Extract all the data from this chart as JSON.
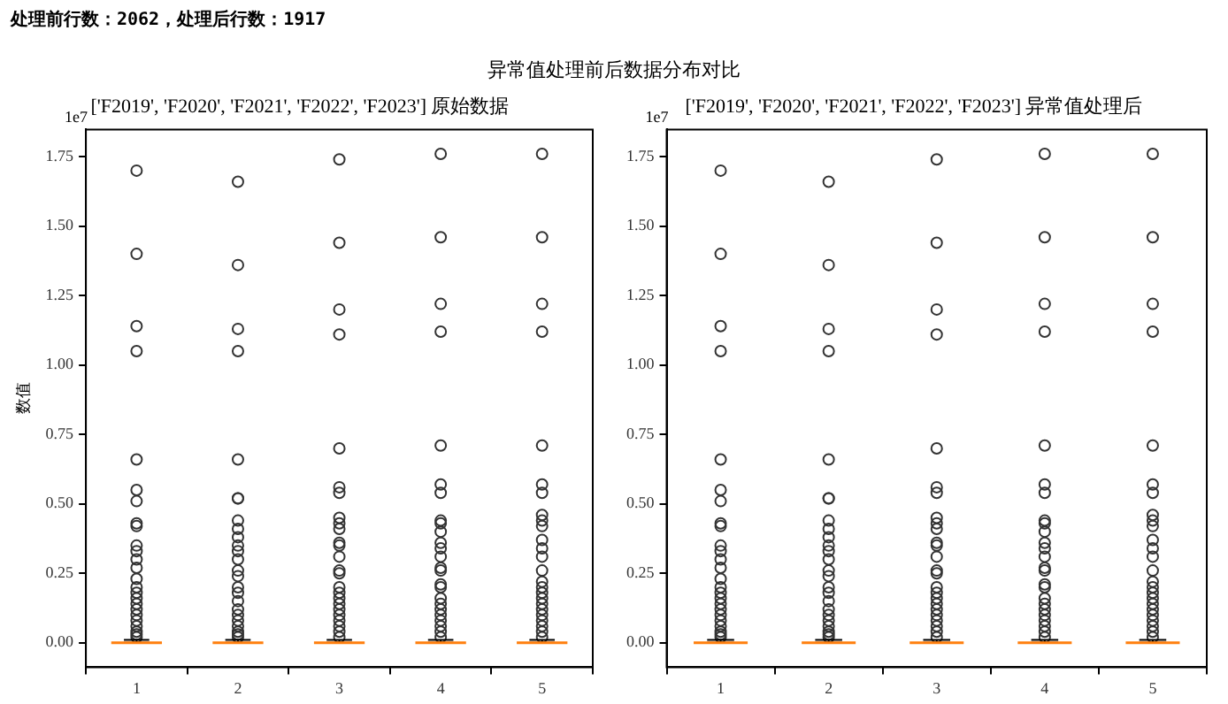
{
  "chart_data": [
    {
      "type": "box",
      "title": "['F2019', 'F2020', 'F2021', 'F2022', 'F2023'] 原始数据",
      "ylabel": "数值",
      "categories": [
        "1",
        "2",
        "3",
        "4",
        "5"
      ],
      "marker": "circle",
      "annotations": [
        "1e7",
        "处理前行数：2062，处理后行数：1917",
        "异常值处理前后数据分布对比"
      ],
      "ylim": [
        -0.088,
        1.848
      ],
      "yticks": [
        {
          "value": 0,
          "label": "0.00"
        },
        {
          "value": 0.25,
          "label": "0.25"
        },
        {
          "value": 0.5,
          "label": "0.50"
        },
        {
          "value": 0.75,
          "label": "0.75"
        },
        {
          "value": 1,
          "label": "1.00"
        },
        {
          "value": 1.25,
          "label": "1.25"
        },
        {
          "value": 1.5,
          "label": "1.50"
        },
        {
          "value": 1.75,
          "label": "1.75"
        }
      ],
      "boxes": [
        {
          "low": 0,
          "q1": 0,
          "median": 0,
          "q3": 0,
          "high": 0.01,
          "outliers": [
            1.7,
            1.4,
            1.14,
            1.05,
            0.66,
            0.55,
            0.51,
            0.43,
            0.42,
            0.35,
            0.33,
            0.3,
            0.27,
            0.23,
            0.2,
            0.18,
            0.16,
            0.14,
            0.12,
            0.1,
            0.08,
            0.06,
            0.04,
            0.03,
            0.02
          ]
        },
        {
          "low": 0,
          "q1": 0,
          "median": 0,
          "q3": 0,
          "high": 0.01,
          "outliers": [
            1.66,
            1.36,
            1.13,
            1.05,
            0.66,
            0.52,
            0.52,
            0.44,
            0.41,
            0.38,
            0.35,
            0.33,
            0.3,
            0.26,
            0.24,
            0.2,
            0.18,
            0.15,
            0.12,
            0.1,
            0.08,
            0.06,
            0.04,
            0.03,
            0.02
          ]
        },
        {
          "low": 0,
          "q1": 0,
          "median": 0,
          "q3": 0,
          "high": 0.01,
          "outliers": [
            1.74,
            1.44,
            1.2,
            1.11,
            0.7,
            0.56,
            0.54,
            0.45,
            0.43,
            0.41,
            0.36,
            0.35,
            0.31,
            0.26,
            0.25,
            0.2,
            0.18,
            0.16,
            0.14,
            0.12,
            0.1,
            0.08,
            0.06,
            0.04,
            0.02
          ]
        },
        {
          "low": 0,
          "q1": 0,
          "median": 0,
          "q3": 0,
          "high": 0.01,
          "outliers": [
            1.76,
            1.46,
            1.22,
            1.12,
            0.71,
            0.57,
            0.54,
            0.44,
            0.43,
            0.4,
            0.36,
            0.34,
            0.31,
            0.27,
            0.26,
            0.21,
            0.2,
            0.16,
            0.14,
            0.12,
            0.1,
            0.08,
            0.06,
            0.04,
            0.02
          ]
        },
        {
          "low": 0,
          "q1": 0,
          "median": 0,
          "q3": 0,
          "high": 0.01,
          "outliers": [
            1.76,
            1.46,
            1.22,
            1.12,
            0.71,
            0.57,
            0.54,
            0.46,
            0.44,
            0.42,
            0.37,
            0.34,
            0.31,
            0.26,
            0.22,
            0.2,
            0.18,
            0.16,
            0.14,
            0.12,
            0.1,
            0.08,
            0.06,
            0.04,
            0.02
          ]
        }
      ]
    },
    {
      "type": "box",
      "title": "['F2019', 'F2020', 'F2021', 'F2022', 'F2023'] 异常值处理后",
      "categories": [
        "1",
        "2",
        "3",
        "4",
        "5"
      ],
      "marker": "circle",
      "annotations": [
        "1e7"
      ],
      "ylim": [
        -0.088,
        1.848
      ],
      "yticks": [
        {
          "value": 0,
          "label": "0.00"
        },
        {
          "value": 0.25,
          "label": "0.25"
        },
        {
          "value": 0.5,
          "label": "0.50"
        },
        {
          "value": 0.75,
          "label": "0.75"
        },
        {
          "value": 1,
          "label": "1.00"
        },
        {
          "value": 1.25,
          "label": "1.25"
        },
        {
          "value": 1.5,
          "label": "1.50"
        },
        {
          "value": 1.75,
          "label": "1.75"
        }
      ],
      "boxes": [
        {
          "low": 0,
          "q1": 0,
          "median": 0,
          "q3": 0,
          "high": 0.01,
          "outliers": [
            1.7,
            1.4,
            1.14,
            1.05,
            0.66,
            0.55,
            0.51,
            0.43,
            0.42,
            0.35,
            0.33,
            0.3,
            0.27,
            0.23,
            0.2,
            0.18,
            0.16,
            0.14,
            0.12,
            0.1,
            0.08,
            0.06,
            0.04,
            0.03,
            0.02
          ]
        },
        {
          "low": 0,
          "q1": 0,
          "median": 0,
          "q3": 0,
          "high": 0.01,
          "outliers": [
            1.66,
            1.36,
            1.13,
            1.05,
            0.66,
            0.52,
            0.52,
            0.44,
            0.41,
            0.38,
            0.35,
            0.33,
            0.3,
            0.26,
            0.24,
            0.2,
            0.18,
            0.15,
            0.12,
            0.1,
            0.08,
            0.06,
            0.04,
            0.03,
            0.02
          ]
        },
        {
          "low": 0,
          "q1": 0,
          "median": 0,
          "q3": 0,
          "high": 0.01,
          "outliers": [
            1.74,
            1.44,
            1.2,
            1.11,
            0.7,
            0.56,
            0.54,
            0.45,
            0.43,
            0.41,
            0.36,
            0.35,
            0.31,
            0.26,
            0.25,
            0.2,
            0.18,
            0.16,
            0.14,
            0.12,
            0.1,
            0.08,
            0.06,
            0.04,
            0.02
          ]
        },
        {
          "low": 0,
          "q1": 0,
          "median": 0,
          "q3": 0,
          "high": 0.01,
          "outliers": [
            1.76,
            1.46,
            1.22,
            1.12,
            0.71,
            0.57,
            0.54,
            0.44,
            0.43,
            0.4,
            0.36,
            0.34,
            0.31,
            0.27,
            0.26,
            0.21,
            0.2,
            0.16,
            0.14,
            0.12,
            0.1,
            0.08,
            0.06,
            0.04,
            0.02
          ]
        },
        {
          "low": 0,
          "q1": 0,
          "median": 0,
          "q3": 0,
          "high": 0.01,
          "outliers": [
            1.76,
            1.46,
            1.22,
            1.12,
            0.71,
            0.57,
            0.54,
            0.46,
            0.44,
            0.42,
            0.37,
            0.34,
            0.31,
            0.26,
            0.22,
            0.2,
            0.18,
            0.16,
            0.14,
            0.12,
            0.1,
            0.08,
            0.06,
            0.04,
            0.02
          ]
        }
      ]
    }
  ]
}
